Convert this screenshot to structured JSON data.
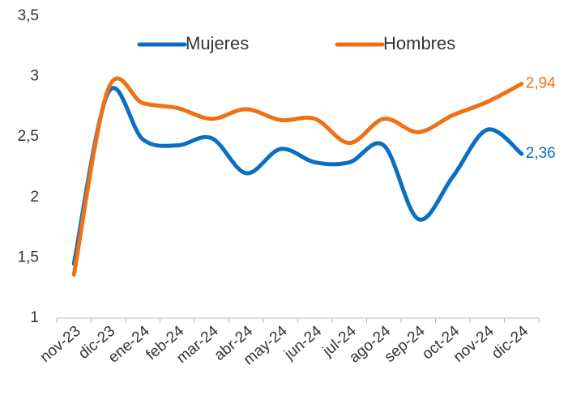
{
  "chart_data": {
    "type": "line",
    "categories": [
      "nov-23",
      "dic-23",
      "ene-24",
      "feb-24",
      "mar-24",
      "abr-24",
      "may-24",
      "jun-24",
      "jul-24",
      "ago-24",
      "sep-24",
      "oct-24",
      "nov-24",
      "dic-24"
    ],
    "series": [
      {
        "name": "Mujeres",
        "color": "#0a6fc2",
        "values": [
          1.45,
          2.87,
          2.48,
          2.43,
          2.49,
          2.2,
          2.4,
          2.29,
          2.29,
          2.43,
          1.82,
          2.17,
          2.56,
          2.36
        ],
        "value_labels": [
          null,
          null,
          null,
          null,
          null,
          null,
          null,
          null,
          null,
          null,
          null,
          null,
          null,
          "2,36"
        ]
      },
      {
        "name": "Hombres",
        "color": "#f07014",
        "values": [
          1.36,
          2.9,
          2.78,
          2.74,
          2.65,
          2.73,
          2.64,
          2.65,
          2.45,
          2.65,
          2.54,
          2.68,
          2.79,
          2.94
        ],
        "value_labels": [
          null,
          null,
          null,
          null,
          null,
          null,
          null,
          null,
          null,
          null,
          null,
          null,
          null,
          "2,94"
        ]
      }
    ],
    "ylim": [
      1,
      3.5
    ],
    "yticks": [
      1,
      {
        "value": 1.5,
        "label": "1,5"
      },
      2,
      {
        "value": 2.5,
        "label": "2,5"
      },
      3,
      {
        "value": 3.5,
        "label": "3,5"
      }
    ],
    "legend": "top"
  }
}
